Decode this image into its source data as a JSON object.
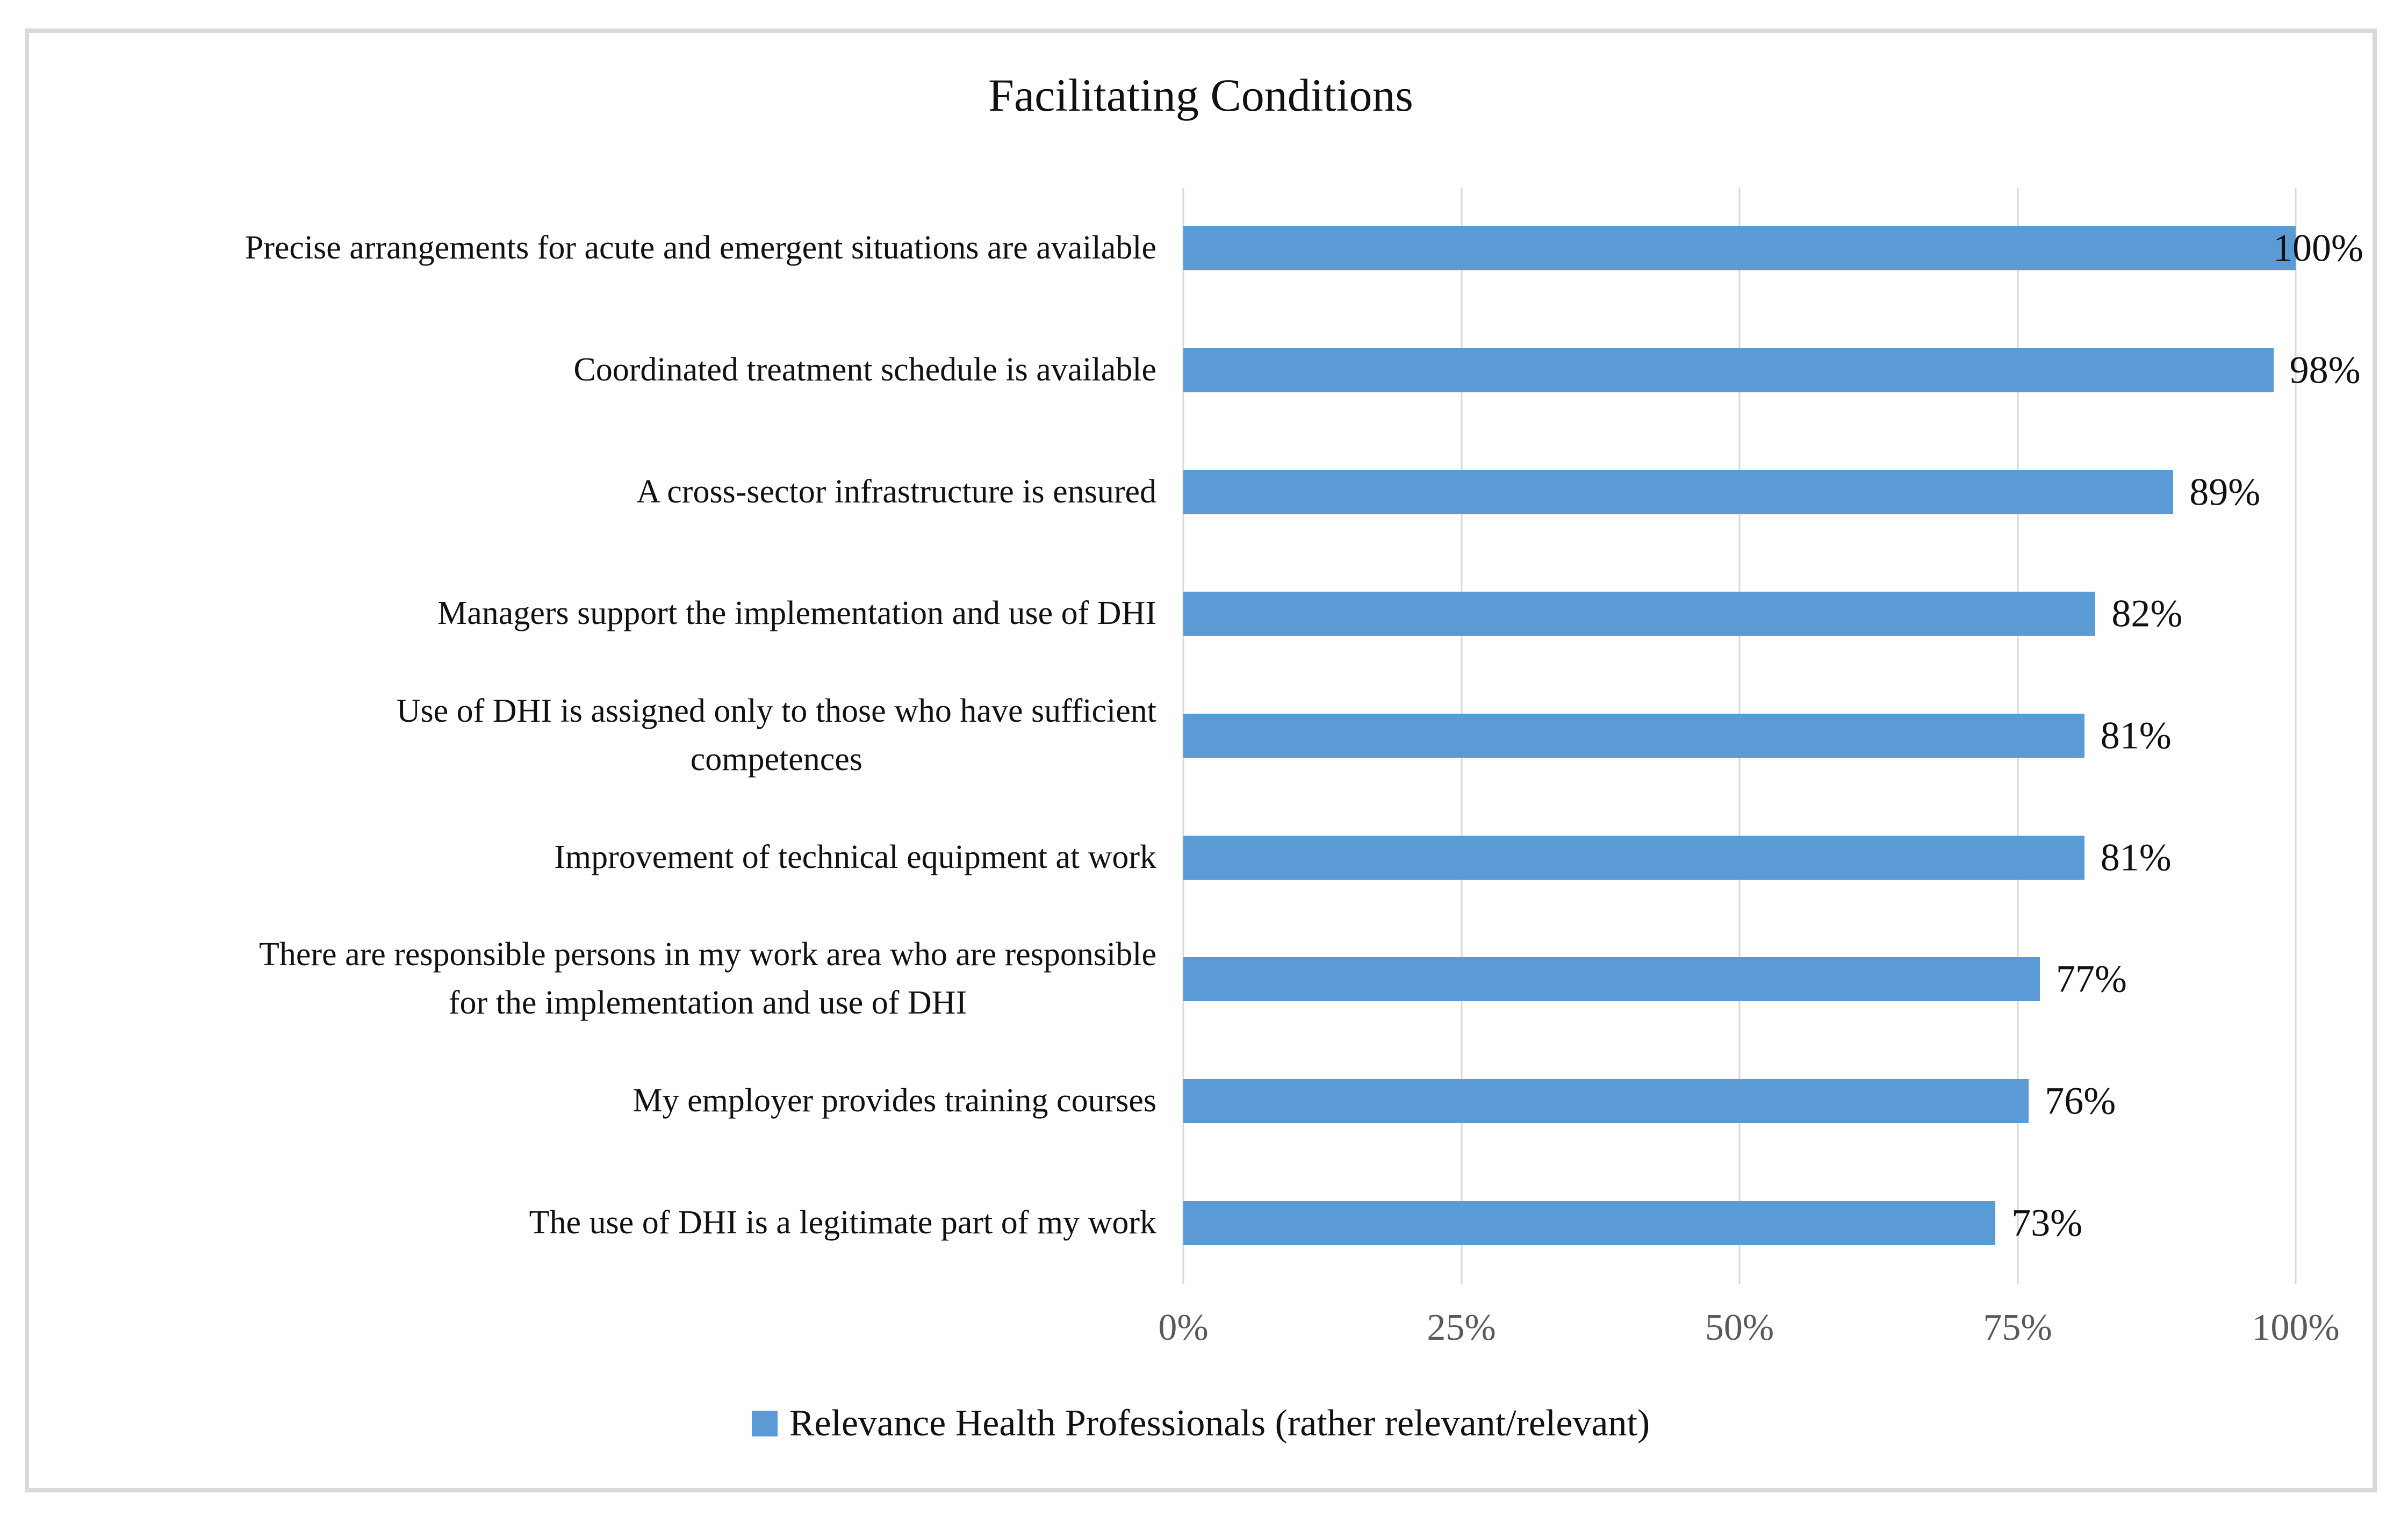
{
  "figure": {
    "title": "Facilitating Conditions",
    "border_color": "#D9D9D9",
    "legend": {
      "label": "Relevance Health Professionals (rather relevant/relevant)",
      "marker_color": "#5B9BD5"
    }
  },
  "chart_data": {
    "type": "bar",
    "orientation": "horizontal",
    "title": "Facilitating Conditions",
    "categories": [
      "Precise arrangements for acute and emergent situations are available",
      "Coordinated treatment schedule is available",
      "A cross-sector infrastructure is ensured",
      "Managers support the implementation and use of DHI",
      "Use of DHI is assigned only to those who have sufficient\ncompetences",
      "Improvement of technical equipment at work",
      "There are responsible persons in my work area who are responsible\nfor the implementation and use of DHI",
      "My employer provides training courses",
      "The use of DHI is a legitimate part of my work"
    ],
    "values": [
      100,
      98,
      89,
      82,
      81,
      81,
      77,
      76,
      73
    ],
    "value_labels": [
      "100%",
      "98%",
      "89%",
      "82%",
      "81%",
      "81%",
      "77%",
      "76%",
      "73%"
    ],
    "x_ticks": [
      "0%",
      "25%",
      "50%",
      "75%",
      "100%"
    ],
    "x_tick_values": [
      0,
      25,
      50,
      75,
      100
    ],
    "xlim": [
      0,
      100
    ],
    "xlabel": "",
    "ylabel": "",
    "grid": "vertical-only",
    "legend_position": "bottom",
    "series": [
      {
        "name": "Relevance Health Professionals (rather relevant/relevant)",
        "values": [
          100,
          98,
          89,
          82,
          81,
          81,
          77,
          76,
          73
        ]
      }
    ],
    "bar_color": "#5B9BD5",
    "gridline_color": "#D9D9D9",
    "tick_label_color": "#595959",
    "text_color": "#111111"
  }
}
